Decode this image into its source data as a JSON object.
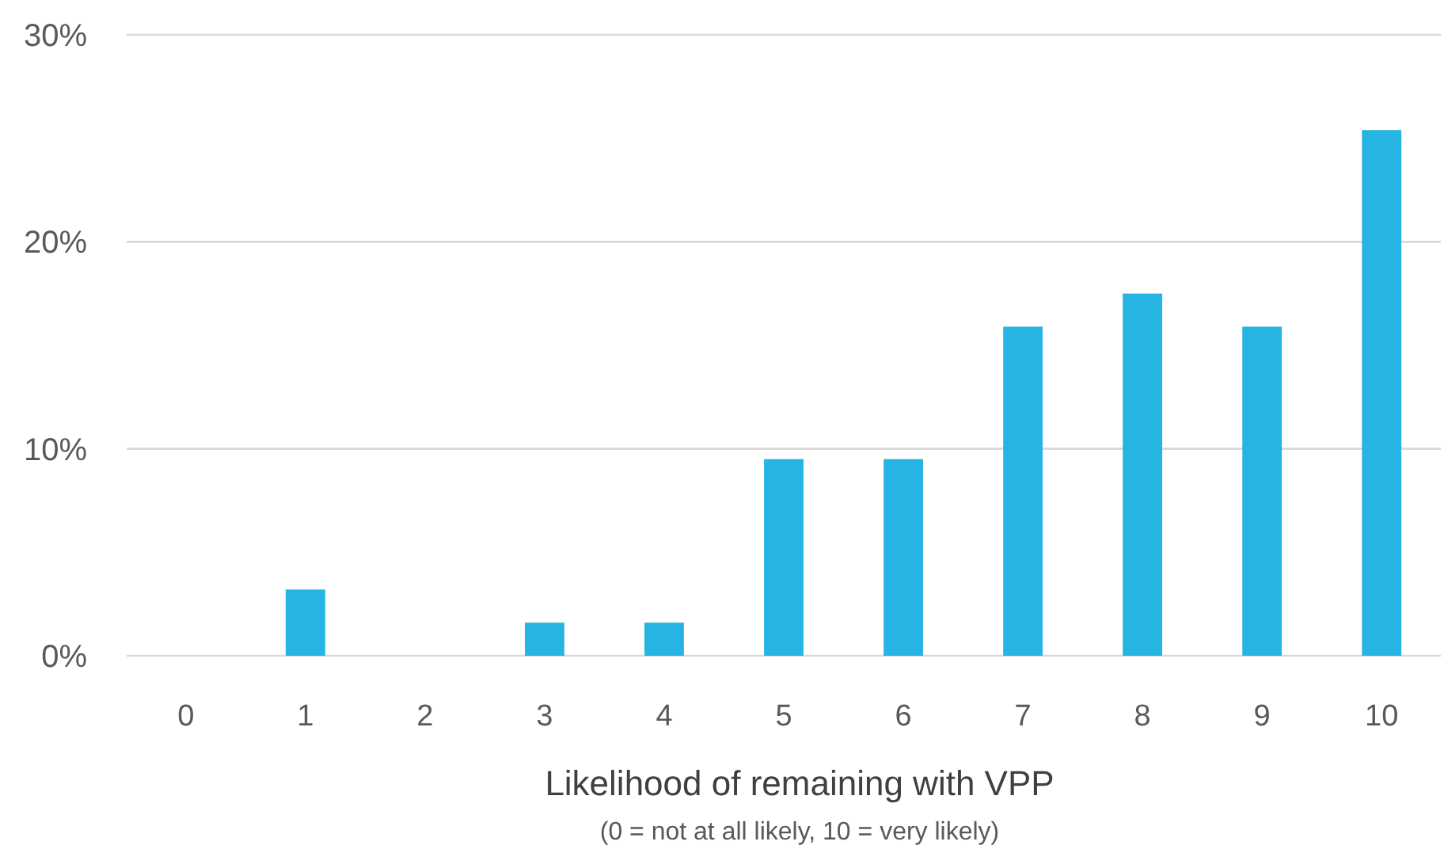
{
  "chart_data": {
    "type": "bar",
    "xlabel": "Likelihood of remaining with VPP",
    "annotations": [
      "(0 = not at all likely, 10 = very likely)"
    ],
    "categories": [
      "0",
      "1",
      "2",
      "3",
      "4",
      "5",
      "6",
      "7",
      "8",
      "9",
      "10"
    ],
    "values": [
      0,
      3.2,
      0,
      1.6,
      1.6,
      9.5,
      9.5,
      15.9,
      17.5,
      15.9,
      25.4
    ],
    "color": "#26b4e2",
    "ylim": [
      0,
      30
    ],
    "yticks": [
      {
        "value": 0,
        "label": "0%"
      },
      {
        "value": 10,
        "label": "10%"
      },
      {
        "value": 20,
        "label": "20%"
      },
      {
        "value": 30,
        "label": "30%"
      }
    ],
    "grid": "y"
  }
}
